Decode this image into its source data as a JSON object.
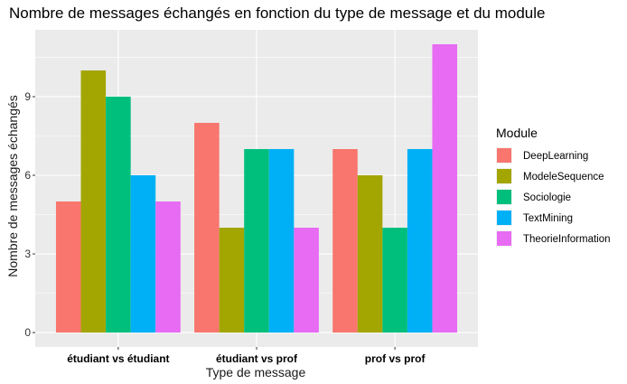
{
  "chart_data": {
    "type": "bar",
    "title": "Nombre de messages échangés en fonction du type de message et du module",
    "xlabel": "Type de message",
    "ylabel": "Nombre de messages échangés",
    "categories": [
      "étudiant vs étudiant",
      "étudiant vs prof",
      "prof vs prof"
    ],
    "series": [
      {
        "name": "DeepLearning",
        "color": "#F8766D",
        "values": [
          5,
          8,
          7
        ]
      },
      {
        "name": "ModeleSequence",
        "color": "#A3A500",
        "values": [
          10,
          4,
          6
        ]
      },
      {
        "name": "Sociologie",
        "color": "#00BF7D",
        "values": [
          9,
          7,
          4
        ]
      },
      {
        "name": "TextMining",
        "color": "#00B0F6",
        "values": [
          6,
          7,
          7
        ]
      },
      {
        "name": "TheorieInformation",
        "color": "#E76BF3",
        "values": [
          5,
          4,
          11
        ]
      }
    ],
    "yticks": [
      0,
      3,
      6,
      9
    ],
    "ylim": [
      -0.55,
      11.55
    ],
    "legend_title": "Module",
    "legend_position": "right",
    "grid": true,
    "panel_background": "#EBEBEB"
  }
}
